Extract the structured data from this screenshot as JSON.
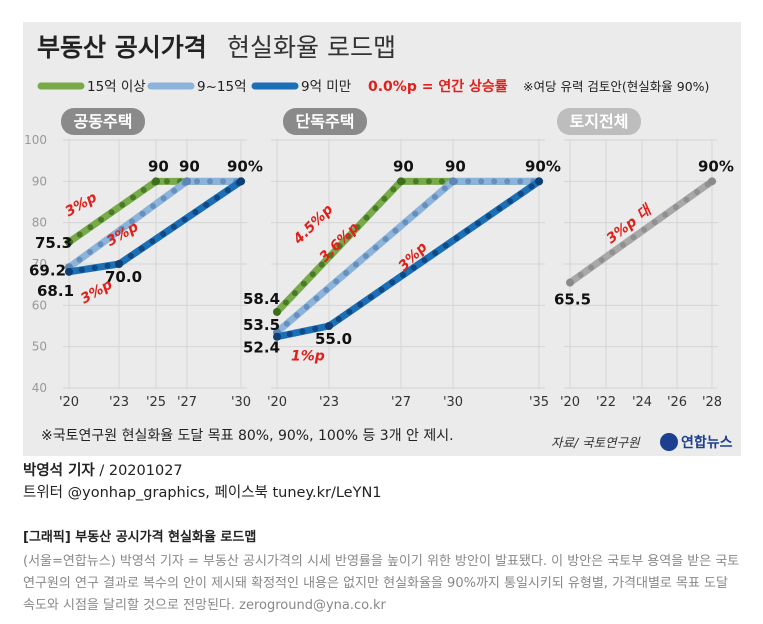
{
  "header": {
    "title_bold": "부동산 공시가격",
    "title_rest": "현실화율 로드맵"
  },
  "legend": {
    "items": [
      {
        "label": "15억 이상",
        "color": "#78aa4a"
      },
      {
        "label": "9~15억",
        "color": "#8cb3d9"
      },
      {
        "label": "9억 미만",
        "color": "#1a6fb7"
      }
    ],
    "rate_text": "0.0%p = 연간 상승률",
    "note": "※여당 유력 검토안(현실화율 90%)"
  },
  "chart_data": [
    {
      "type": "line",
      "title": "공동주택",
      "x_ticks": [
        "'20",
        "'23",
        "'25",
        "'27",
        "'30"
      ],
      "ylim": [
        40,
        100
      ],
      "y_ticks": [
        40,
        50,
        60,
        70,
        80,
        90,
        100
      ],
      "series": [
        {
          "name": "15억 이상",
          "points": [
            [
              "'20",
              75.3
            ],
            [
              "'25",
              90
            ],
            [
              "'30",
              90
            ]
          ],
          "labels": [
            "75.3",
            "90",
            ""
          ],
          "rate": "3%p"
        },
        {
          "name": "9~15억",
          "points": [
            [
              "'20",
              69.2
            ],
            [
              "'27",
              90
            ],
            [
              "'30",
              90
            ]
          ],
          "labels": [
            "69.2",
            "90",
            ""
          ],
          "rate": "3%p"
        },
        {
          "name": "9억 미만",
          "points": [
            [
              "'20",
              68.1
            ],
            [
              "'23",
              70.0
            ],
            [
              "'30",
              90
            ]
          ],
          "labels": [
            "68.1",
            "70.0",
            "90%"
          ],
          "rate": "3%p"
        }
      ]
    },
    {
      "type": "line",
      "title": "단독주택",
      "x_ticks": [
        "'20",
        "'23",
        "'27",
        "'30",
        "'35"
      ],
      "ylim": [
        40,
        100
      ],
      "series": [
        {
          "name": "15억 이상",
          "points": [
            [
              "'20",
              58.4
            ],
            [
              "'27",
              90
            ],
            [
              "'35",
              90
            ]
          ],
          "labels": [
            "58.4",
            "90",
            ""
          ],
          "rate": "4.5%p"
        },
        {
          "name": "9~15억",
          "points": [
            [
              "'20",
              53.5
            ],
            [
              "'30",
              90
            ],
            [
              "'35",
              90
            ]
          ],
          "labels": [
            "53.5",
            "90",
            ""
          ],
          "rate": "3.6%p"
        },
        {
          "name": "9억 미만",
          "points": [
            [
              "'20",
              52.4
            ],
            [
              "'23",
              55.0
            ],
            [
              "'35",
              90
            ]
          ],
          "labels": [
            "52.4",
            "55.0",
            "90%"
          ],
          "rate_first": "1%p",
          "rate": "3%p"
        }
      ]
    },
    {
      "type": "line",
      "title": "토지전체",
      "x_ticks": [
        "'20",
        "'22",
        "'24",
        "'26",
        "'28"
      ],
      "ylim": [
        40,
        100
      ],
      "series": [
        {
          "name": "토지전체",
          "points": [
            [
              "'20",
              65.5
            ],
            [
              "'28",
              90
            ]
          ],
          "labels": [
            "65.5",
            "90%"
          ],
          "rate": "3%p 대",
          "color": "#a8a8a8"
        }
      ]
    }
  ],
  "footnote": "※국토연구원 현실화율 도달 목표 80%, 90%, 100% 등 3개 안 제시.",
  "source": "자료/ 국토연구원",
  "logo": "연합뉴스",
  "credits": {
    "reporter": "박영석 기자",
    "date": "20201027",
    "twitter": "트위터 @yonhap_graphics, 페이스북 tuney.kr/LeYN1"
  },
  "article": {
    "headline": "[그래픽] 부동산 공시가격 현실화율 로드맵",
    "body": "(서울=연합뉴스) 박영석 기자 = 부동산 공시가격의 시세 반영률을 높이기 위한 방안이 발표됐다. 이 방안은 국토부 용역을 받은 국토연구원의 연구 결과로 복수의 안이 제시돼 확정적인 내용은 없지만 현실화율을 90%까지 통일시키되 유형별, 가격대별로 목표 도달 속도와 시점을 달리할 것으로 전망된다. zeroground@yna.co.kr"
  }
}
